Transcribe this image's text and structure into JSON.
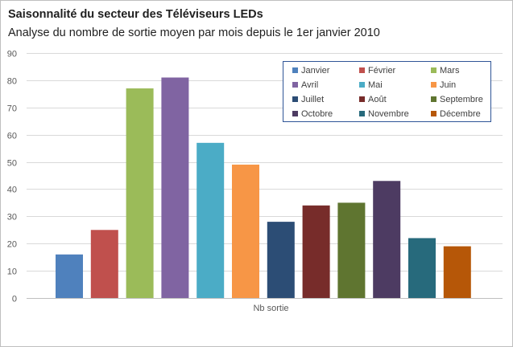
{
  "chart_data": {
    "type": "bar",
    "title": "Saisonnalité du secteur des Téléviseurs LEDs",
    "subtitle": "Analyse du nombre  de sortie moyen par mois depuis le 1er janvier 2010",
    "categories": [
      "Nb sortie"
    ],
    "xlabel": "Nb sortie",
    "ylabel": "",
    "ylim": [
      0,
      90
    ],
    "yticks": [
      0,
      10,
      20,
      30,
      40,
      50,
      60,
      70,
      80,
      90
    ],
    "grid": true,
    "legend_position": "top-right",
    "series": [
      {
        "name": "Janvier",
        "values": [
          16
        ],
        "color": "#4f81bd"
      },
      {
        "name": "Février",
        "values": [
          25
        ],
        "color": "#c0504d"
      },
      {
        "name": "Mars",
        "values": [
          77
        ],
        "color": "#9bbb59"
      },
      {
        "name": "Avril",
        "values": [
          81
        ],
        "color": "#8064a2"
      },
      {
        "name": "Mai",
        "values": [
          57
        ],
        "color": "#4bacc6"
      },
      {
        "name": "Juin",
        "values": [
          49
        ],
        "color": "#f79646"
      },
      {
        "name": "Juillet",
        "values": [
          28
        ],
        "color": "#2c4d75"
      },
      {
        "name": "Août",
        "values": [
          34
        ],
        "color": "#772c2a"
      },
      {
        "name": "Septembre",
        "values": [
          35
        ],
        "color": "#5f7530"
      },
      {
        "name": "Octobre",
        "values": [
          43
        ],
        "color": "#4d3b62"
      },
      {
        "name": "Novembre",
        "values": [
          22
        ],
        "color": "#276a7c"
      },
      {
        "name": "Décembre",
        "values": [
          19
        ],
        "color": "#b65708"
      }
    ]
  }
}
